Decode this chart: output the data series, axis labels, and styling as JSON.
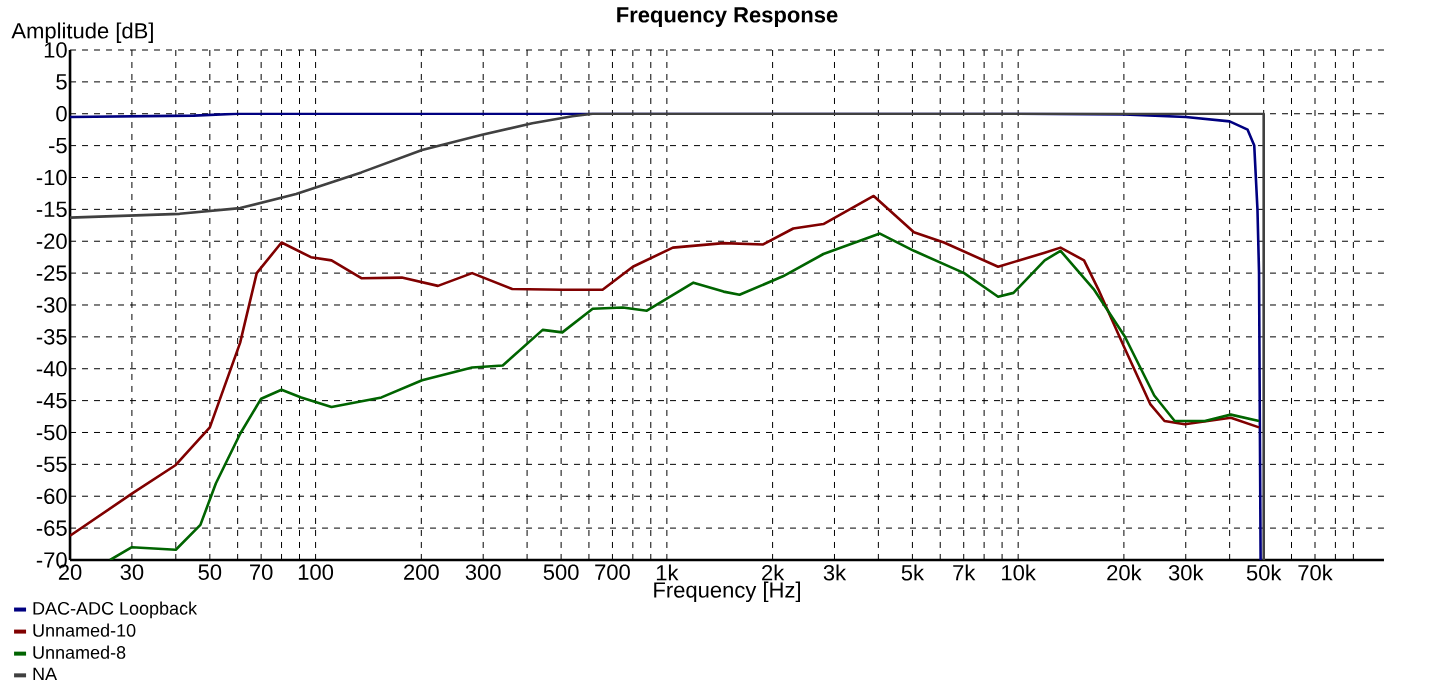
{
  "chart_data": {
    "type": "line",
    "title": "Frequency Response",
    "xlabel": "Frequency [Hz]",
    "ylabel": "Amplitude [dB]",
    "log": "x",
    "grid": true,
    "legend": "bottom left",
    "line_style": "solid",
    "marker": "none",
    "xlim": [
      20,
      110000
    ],
    "ylim": [
      -70,
      10
    ],
    "xticks": [
      20,
      30,
      {
        "value": 40,
        "label": null
      },
      50,
      {
        "value": 60,
        "label": null
      },
      70,
      {
        "value": 80,
        "label": null
      },
      {
        "value": 90,
        "label": null
      },
      100,
      200,
      300,
      {
        "value": 400,
        "label": null
      },
      500,
      {
        "value": 600,
        "label": null
      },
      700,
      {
        "value": 800,
        "label": null
      },
      {
        "value": 900,
        "label": null
      },
      {
        "value": 1000,
        "label": "1k"
      },
      {
        "value": 2000,
        "label": "2k"
      },
      {
        "value": 3000,
        "label": "3k"
      },
      {
        "value": 4000,
        "label": null
      },
      {
        "value": 5000,
        "label": "5k"
      },
      {
        "value": 6000,
        "label": null
      },
      {
        "value": 7000,
        "label": "7k"
      },
      {
        "value": 8000,
        "label": null
      },
      {
        "value": 9000,
        "label": null
      },
      {
        "value": 10000,
        "label": "10k"
      },
      {
        "value": 20000,
        "label": "20k"
      },
      {
        "value": 30000,
        "label": "30k"
      },
      {
        "value": 40000,
        "label": null
      },
      {
        "value": 50000,
        "label": "50k"
      },
      {
        "value": 60000,
        "label": null
      },
      {
        "value": 70000,
        "label": "70k"
      },
      {
        "value": 80000,
        "label": null
      },
      {
        "value": 90000,
        "label": null
      }
    ],
    "yticks": [
      -70,
      -65,
      -60,
      -55,
      -50,
      -45,
      -40,
      -35,
      -30,
      -25,
      -20,
      -15,
      -10,
      -5,
      0,
      5,
      10
    ],
    "series": [
      {
        "name": "DAC-ADC Loopback",
        "color": "#000080",
        "x": [
          20,
          45,
          60,
          100,
          1000,
          10000,
          20000,
          30000,
          40000,
          45000,
          47000,
          48000,
          48500,
          49000
        ],
        "values": [
          -0.5,
          -0.3,
          0,
          0,
          0,
          0,
          -0.1,
          -0.5,
          -1.2,
          -2.5,
          -5,
          -15,
          -25,
          -70
        ]
      },
      {
        "name": "Unnamed-10",
        "color": "#800000",
        "x": [
          20,
          30,
          40,
          50,
          61,
          68,
          80,
          97,
          111,
          135,
          176,
          223,
          279,
          363,
          504,
          656,
          800,
          1040,
          1450,
          1880,
          2290,
          2790,
          3880,
          5050,
          6150,
          8770,
          11900,
          13200,
          15400,
          16900,
          20100,
          23800,
          26100,
          29800,
          40300,
          48500
        ],
        "values": [
          -66.2,
          -59.6,
          -55.1,
          -49.2,
          -35.9,
          -25,
          -20.2,
          -22.5,
          -23,
          -25.8,
          -25.7,
          -27,
          -25,
          -27.5,
          -27.6,
          -27.6,
          -24,
          -21,
          -20.3,
          -20.5,
          -18,
          -17.3,
          -12.9,
          -18.6,
          -20.2,
          -24,
          -21.8,
          -21,
          -23,
          -27.5,
          -36.8,
          -45.6,
          -48.2,
          -48.7,
          -47.7,
          -49.2
        ]
      },
      {
        "name": "Unnamed-8",
        "color": "#006400",
        "x": [
          26,
          30,
          40,
          47,
          52,
          61,
          70,
          80,
          91,
          111,
          154,
          201,
          279,
          341,
          443,
          504,
          615,
          749,
          877,
          1190,
          1450,
          1610,
          2140,
          2790,
          4040,
          5050,
          7020,
          8770,
          9700,
          11900,
          13200,
          16400,
          20100,
          24400,
          27900,
          34000,
          40300,
          48500
        ],
        "values": [
          -70,
          -68,
          -68.4,
          -64.5,
          -58,
          -50.2,
          -44.7,
          -43.3,
          -44.5,
          -46,
          -44.5,
          -41.8,
          -39.8,
          -39.5,
          -33.9,
          -34.3,
          -30.6,
          -30.4,
          -30.9,
          -26.5,
          -27.9,
          -28.4,
          -25.5,
          -22,
          -18.8,
          -21.5,
          -25,
          -28.7,
          -28.1,
          -23,
          -21.5,
          -27.5,
          -34.9,
          -44.2,
          -48.2,
          -48.2,
          -47.2,
          -48.2
        ]
      },
      {
        "name": "NA",
        "color": "#404040",
        "x": [
          20,
          41,
          61,
          88,
          135,
          201,
          298,
          414,
          538,
          615,
          1000,
          10000,
          50000,
          50000
        ],
        "values": [
          -16.3,
          -15.7,
          -14.8,
          -12.6,
          -9.2,
          -5.7,
          -3.3,
          -1.5,
          -0.4,
          0,
          0,
          0,
          0,
          -70
        ]
      }
    ]
  }
}
